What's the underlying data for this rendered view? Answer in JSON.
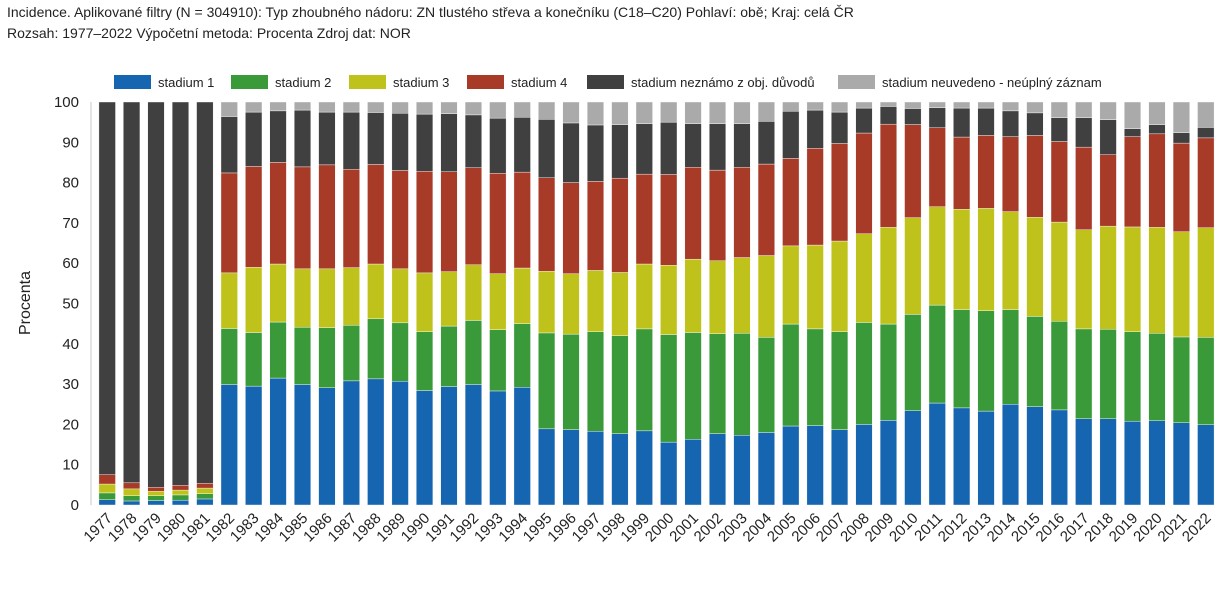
{
  "header": {
    "line1": "Incidence. Aplikované filtry (N = 304910): Typ zhoubného nádoru: ZN tlustého střeva a konečníku (C18–C20) Pohlaví: obě; Kraj: celá ČR",
    "line2": "Rozsah: 1977–2022 Výpočetní metoda: Procenta Zdroj dat: NOR"
  },
  "chart_data": {
    "type": "bar",
    "stacked": true,
    "ylabel": "Procenta",
    "xlabel": "",
    "ylim": [
      0,
      100
    ],
    "yticks": [
      0,
      10,
      20,
      30,
      40,
      50,
      60,
      70,
      80,
      90,
      100
    ],
    "grid": false,
    "legend_position": "top",
    "categories": [
      "1977",
      "1978",
      "1979",
      "1980",
      "1981",
      "1982",
      "1983",
      "1984",
      "1985",
      "1986",
      "1987",
      "1988",
      "1989",
      "1990",
      "1991",
      "1992",
      "1993",
      "1994",
      "1995",
      "1996",
      "1997",
      "1998",
      "1999",
      "2000",
      "2001",
      "2002",
      "2003",
      "2004",
      "2005",
      "2006",
      "2007",
      "2008",
      "2009",
      "2010",
      "2011",
      "2012",
      "2013",
      "2014",
      "2015",
      "2016",
      "2017",
      "2018",
      "2019",
      "2020",
      "2021",
      "2022"
    ],
    "series": [
      {
        "name": "stadium 1",
        "color": "#1565b0",
        "values": [
          1.3,
          1.0,
          1.1,
          1.2,
          1.5,
          29.9,
          29.5,
          31.5,
          29.9,
          29.1,
          30.8,
          31.3,
          30.7,
          28.4,
          29.4,
          29.9,
          28.3,
          29.2,
          18.9,
          18.7,
          18.3,
          17.7,
          18.4,
          15.6,
          16.3,
          17.7,
          17.3,
          18.0,
          19.6,
          19.7,
          18.7,
          20.0,
          21.0,
          23.4,
          25.3,
          24.1,
          23.3,
          25.0,
          24.4,
          23.6,
          21.4,
          21.4,
          20.8,
          20.9,
          20.4,
          19.9
        ]
      },
      {
        "name": "stadium 2",
        "color": "#3a9a3a",
        "values": [
          1.7,
          1.3,
          1.2,
          1.3,
          1.3,
          13.9,
          13.3,
          13.9,
          14.2,
          14.9,
          13.8,
          14.9,
          14.5,
          14.6,
          15.0,
          15.9,
          15.2,
          15.8,
          23.8,
          23.7,
          24.7,
          24.3,
          25.3,
          26.7,
          26.5,
          24.8,
          25.3,
          23.6,
          25.3,
          24.0,
          24.3,
          25.3,
          23.9,
          23.9,
          24.3,
          24.4,
          24.9,
          23.5,
          22.4,
          22.0,
          22.3,
          22.2,
          22.2,
          21.7,
          21.3,
          21.7
        ]
      },
      {
        "name": "stadium 3",
        "color": "#bfc21a",
        "values": [
          2.2,
          1.7,
          1.1,
          1.2,
          1.4,
          13.8,
          16.2,
          14.4,
          14.5,
          14.6,
          14.3,
          13.6,
          13.4,
          14.6,
          13.5,
          13.8,
          13.9,
          13.8,
          15.3,
          15.0,
          15.2,
          15.7,
          16.1,
          17.2,
          18.2,
          18.1,
          18.8,
          20.3,
          19.4,
          20.8,
          22.5,
          22.0,
          24.0,
          24.0,
          24.4,
          24.9,
          25.4,
          24.3,
          24.6,
          24.6,
          24.6,
          25.6,
          26.0,
          26.3,
          26.1,
          27.2
        ]
      },
      {
        "name": "stadium 4",
        "color": "#a83a28",
        "values": [
          2.3,
          1.5,
          1.0,
          1.2,
          1.2,
          24.8,
          25.0,
          25.2,
          25.3,
          25.8,
          24.4,
          24.7,
          24.4,
          25.2,
          24.8,
          24.1,
          24.9,
          23.8,
          23.2,
          22.6,
          22.1,
          23.4,
          22.3,
          22.5,
          22.8,
          22.5,
          22.4,
          22.7,
          21.7,
          24.0,
          24.2,
          25.0,
          25.6,
          23.1,
          19.6,
          17.9,
          18.1,
          18.6,
          20.3,
          20.0,
          20.5,
          17.7,
          22.4,
          23.2,
          22.0,
          22.3
        ]
      },
      {
        "name": "stadium neznámo z obj. důvodů",
        "color": "#404040",
        "values": [
          92.5,
          94.5,
          95.6,
          95.1,
          94.6,
          14.0,
          13.5,
          12.8,
          14.1,
          13.1,
          14.2,
          12.9,
          14.2,
          14.2,
          14.4,
          13.1,
          13.7,
          13.6,
          14.5,
          14.8,
          14.0,
          13.3,
          12.5,
          13.0,
          10.8,
          11.5,
          10.8,
          10.6,
          11.7,
          9.5,
          7.8,
          6.2,
          4.4,
          4.0,
          5.0,
          7.2,
          6.8,
          6.4,
          5.6,
          5.9,
          7.3,
          8.7,
          2.0,
          2.3,
          2.6,
          2.6
        ]
      },
      {
        "name": "stadium neuvedeno - neúplný záznam",
        "color": "#aaaaaa",
        "values": [
          0.0,
          0.0,
          0.0,
          0.0,
          0.0,
          3.6,
          2.5,
          2.2,
          2.0,
          2.5,
          2.5,
          2.6,
          2.8,
          3.0,
          2.9,
          3.2,
          4.0,
          3.8,
          4.3,
          5.2,
          5.7,
          5.6,
          5.4,
          5.0,
          5.4,
          5.4,
          5.4,
          4.8,
          2.3,
          2.0,
          2.5,
          1.5,
          1.1,
          1.6,
          1.4,
          1.5,
          1.5,
          2.2,
          2.7,
          3.9,
          3.9,
          4.4,
          6.6,
          5.6,
          7.6,
          6.3
        ]
      }
    ]
  }
}
